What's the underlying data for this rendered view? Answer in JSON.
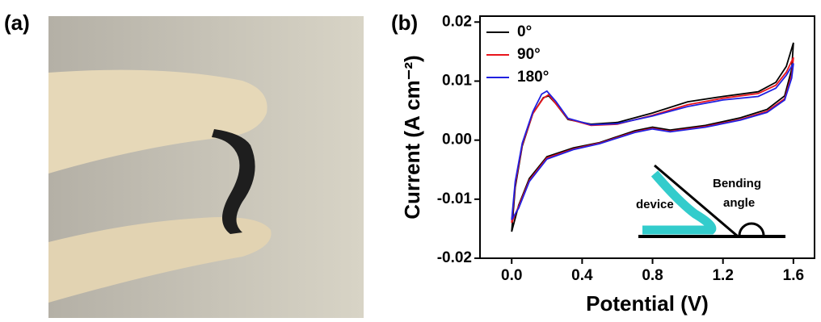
{
  "panel_labels": [
    "(a)",
    "(b)"
  ],
  "chart_data": {
    "type": "line",
    "x_label": "Potential (V)",
    "y_label": "Current (A cm⁻²)",
    "xlim": [
      -0.18,
      1.72
    ],
    "ylim": [
      -0.02,
      0.021
    ],
    "xticks": [
      {
        "value": 0,
        "label": "0.0"
      },
      0.4,
      0.8,
      1.2,
      1.6
    ],
    "yticks": [
      0.02,
      0.01,
      {
        "value": 0,
        "label": "0.00"
      },
      -0.01,
      -0.02
    ],
    "legend": "upper-left",
    "annotations": [
      "device",
      "Bending",
      "angle"
    ],
    "series": [
      {
        "name": "0°",
        "color": "#000000",
        "x": [
          0.0,
          0.02,
          0.06,
          0.12,
          0.18,
          0.21,
          0.25,
          0.32,
          0.45,
          0.6,
          0.8,
          1.0,
          1.2,
          1.4,
          1.5,
          1.56,
          1.6,
          1.59,
          1.55,
          1.45,
          1.3,
          1.1,
          0.9,
          0.8,
          0.7,
          0.5,
          0.35,
          0.2,
          0.1,
          0.04,
          0.0
        ],
        "values": [
          -0.0155,
          -0.008,
          -0.001,
          0.0045,
          0.0072,
          0.0075,
          0.0062,
          0.0035,
          0.0027,
          0.003,
          0.0046,
          0.0065,
          0.0074,
          0.0082,
          0.0098,
          0.0125,
          0.0165,
          0.012,
          0.0075,
          0.0052,
          0.0038,
          0.0025,
          0.0017,
          0.0022,
          0.0016,
          -0.0004,
          -0.0013,
          -0.0028,
          -0.0065,
          -0.011,
          -0.0155
        ]
      },
      {
        "name": "90°",
        "color": "#e8141c",
        "x": [
          0.0,
          0.02,
          0.06,
          0.12,
          0.18,
          0.21,
          0.25,
          0.32,
          0.45,
          0.6,
          0.8,
          1.0,
          1.2,
          1.4,
          1.5,
          1.56,
          1.6,
          1.59,
          1.55,
          1.45,
          1.3,
          1.1,
          0.9,
          0.8,
          0.7,
          0.5,
          0.35,
          0.2,
          0.1,
          0.04,
          0.0
        ],
        "values": [
          -0.014,
          -0.0075,
          -0.0008,
          0.0045,
          0.0071,
          0.0077,
          0.0062,
          0.0036,
          0.0025,
          0.0027,
          0.0042,
          0.006,
          0.0071,
          0.0079,
          0.0093,
          0.0115,
          0.014,
          0.011,
          0.007,
          0.0049,
          0.0035,
          0.0023,
          0.0015,
          0.002,
          0.0014,
          -0.0005,
          -0.0015,
          -0.003,
          -0.0068,
          -0.0112,
          -0.014
        ]
      },
      {
        "name": "180°",
        "color": "#2020e0",
        "x": [
          0.0,
          0.02,
          0.06,
          0.12,
          0.17,
          0.2,
          0.25,
          0.32,
          0.45,
          0.6,
          0.8,
          1.0,
          1.2,
          1.4,
          1.5,
          1.56,
          1.6,
          1.59,
          1.55,
          1.45,
          1.3,
          1.1,
          0.9,
          0.8,
          0.7,
          0.5,
          0.35,
          0.2,
          0.1,
          0.04,
          0.0
        ],
        "values": [
          -0.0135,
          -0.007,
          -0.0005,
          0.0048,
          0.0078,
          0.0083,
          0.0066,
          0.0037,
          0.0026,
          0.0028,
          0.0041,
          0.0057,
          0.0068,
          0.0074,
          0.0088,
          0.011,
          0.013,
          0.0105,
          0.0068,
          0.0047,
          0.0034,
          0.0022,
          0.0014,
          0.0019,
          0.0013,
          -0.0006,
          -0.0016,
          -0.0032,
          -0.007,
          -0.0115,
          -0.0135
        ]
      }
    ]
  }
}
